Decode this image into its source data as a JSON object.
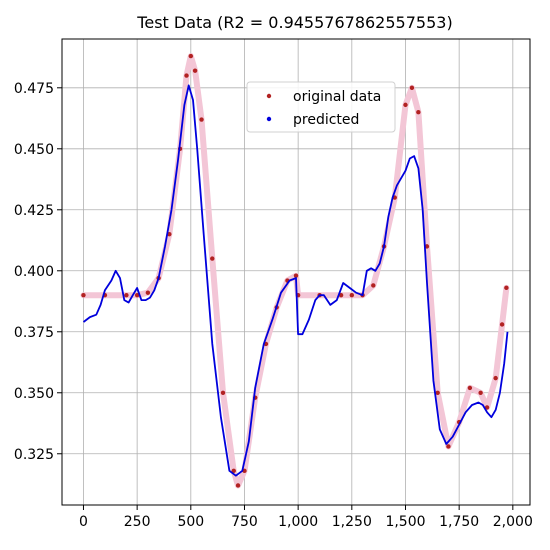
{
  "chart_data": {
    "type": "scatter",
    "title": "Test Data (R2 = 0.9455767862557553)",
    "xlabel": "",
    "ylabel": "",
    "xlim": [
      -100,
      2080
    ],
    "ylim": [
      0.304,
      0.495
    ],
    "grid": true,
    "legend_position": "top-center",
    "x_ticks": [
      0,
      250,
      500,
      750,
      1000,
      1250,
      1500,
      1750,
      2000
    ],
    "x_tick_labels": [
      "0",
      "250",
      "500",
      "750",
      "1,000",
      "1,250",
      "1,500",
      "1,750",
      "2,000"
    ],
    "y_ticks": [
      0.325,
      0.35,
      0.375,
      0.4,
      0.425,
      0.45,
      0.475
    ],
    "y_tick_labels": [
      "0.325",
      "0.350",
      "0.375",
      "0.400",
      "0.425",
      "0.450",
      "0.475"
    ],
    "series": [
      {
        "name": "original data",
        "color": "#b22222",
        "marker": "dot",
        "x": [
          0,
          100,
          200,
          250,
          300,
          350,
          400,
          450,
          480,
          500,
          520,
          550,
          600,
          650,
          700,
          720,
          750,
          800,
          850,
          900,
          950,
          990,
          1000,
          1100,
          1200,
          1250,
          1300,
          1350,
          1400,
          1450,
          1500,
          1530,
          1560,
          1600,
          1650,
          1700,
          1750,
          1800,
          1850,
          1880,
          1920,
          1950,
          1970
        ],
        "y": [
          0.39,
          0.39,
          0.39,
          0.39,
          0.391,
          0.397,
          0.415,
          0.45,
          0.48,
          0.488,
          0.482,
          0.462,
          0.405,
          0.35,
          0.318,
          0.312,
          0.318,
          0.348,
          0.37,
          0.385,
          0.396,
          0.398,
          0.39,
          0.39,
          0.39,
          0.39,
          0.39,
          0.394,
          0.41,
          0.43,
          0.468,
          0.475,
          0.465,
          0.41,
          0.35,
          0.328,
          0.338,
          0.352,
          0.35,
          0.344,
          0.356,
          0.378,
          0.393
        ]
      },
      {
        "name": "predicted",
        "color": "#0000dd",
        "marker": "line",
        "x": [
          0,
          30,
          60,
          80,
          100,
          130,
          150,
          170,
          190,
          210,
          230,
          250,
          270,
          290,
          310,
          330,
          350,
          380,
          410,
          440,
          470,
          490,
          510,
          530,
          560,
          600,
          640,
          680,
          710,
          740,
          770,
          800,
          840,
          880,
          920,
          960,
          990,
          1000,
          1020,
          1050,
          1080,
          1100,
          1120,
          1150,
          1180,
          1210,
          1240,
          1270,
          1300,
          1320,
          1340,
          1360,
          1380,
          1400,
          1420,
          1440,
          1460,
          1480,
          1500,
          1520,
          1540,
          1560,
          1580,
          1600,
          1630,
          1660,
          1690,
          1720,
          1750,
          1780,
          1810,
          1840,
          1860,
          1880,
          1900,
          1920,
          1940,
          1960,
          1975
        ],
        "y": [
          0.379,
          0.381,
          0.382,
          0.386,
          0.392,
          0.396,
          0.4,
          0.397,
          0.388,
          0.387,
          0.39,
          0.393,
          0.388,
          0.388,
          0.389,
          0.392,
          0.397,
          0.41,
          0.425,
          0.445,
          0.468,
          0.476,
          0.47,
          0.45,
          0.415,
          0.37,
          0.34,
          0.318,
          0.316,
          0.318,
          0.33,
          0.352,
          0.37,
          0.38,
          0.391,
          0.396,
          0.397,
          0.374,
          0.374,
          0.38,
          0.388,
          0.39,
          0.39,
          0.386,
          0.388,
          0.395,
          0.393,
          0.391,
          0.39,
          0.4,
          0.401,
          0.4,
          0.403,
          0.41,
          0.422,
          0.43,
          0.435,
          0.438,
          0.441,
          0.446,
          0.447,
          0.442,
          0.425,
          0.395,
          0.355,
          0.335,
          0.329,
          0.332,
          0.337,
          0.342,
          0.345,
          0.346,
          0.345,
          0.342,
          0.34,
          0.343,
          0.35,
          0.362,
          0.375
        ]
      }
    ]
  }
}
